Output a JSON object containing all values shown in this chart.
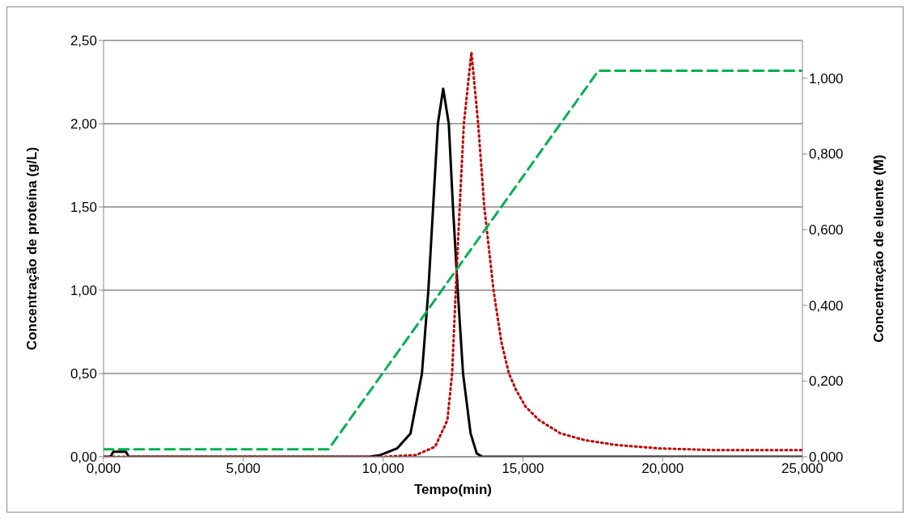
{
  "chart_data": {
    "type": "line",
    "xlabel": "Tempo(min)",
    "ylabel": "Concentração de proteína (g/L)",
    "y2label": "Concentração de eluente (M)",
    "xlim": [
      0,
      25
    ],
    "xticks": [
      {
        "value": 0,
        "label": "0,000"
      },
      {
        "value": 5,
        "label": "5,000"
      },
      {
        "value": 10,
        "label": "10,000"
      },
      {
        "value": 15,
        "label": "15,000"
      },
      {
        "value": 20,
        "label": "20,000"
      },
      {
        "value": 25,
        "label": "25,000"
      }
    ],
    "ylim": [
      0,
      2.5
    ],
    "yticks": [
      {
        "value": 0,
        "label": "0,00"
      },
      {
        "value": 0.5,
        "label": "0,50"
      },
      {
        "value": 1,
        "label": "1,00"
      },
      {
        "value": 1.5,
        "label": "1,50"
      },
      {
        "value": 2,
        "label": "2,00"
      },
      {
        "value": 2.5,
        "label": "2,50"
      }
    ],
    "y2lim": [
      0,
      1.1
    ],
    "y2ticks": [
      {
        "value": 0,
        "label": "0,000"
      },
      {
        "value": 0.2,
        "label": "0,200"
      },
      {
        "value": 0.4,
        "label": "0,400"
      },
      {
        "value": 0.6,
        "label": "0,600"
      },
      {
        "value": 0.8,
        "label": "0,800"
      },
      {
        "value": 1,
        "label": "1,000"
      }
    ],
    "grid": "y",
    "legend": false,
    "marker": "none",
    "series": [
      {
        "color": "#000000",
        "line_style": "solid",
        "x": [
          0,
          0.25,
          0.35,
          0.8,
          0.9,
          9.5,
          9.9,
          10.5,
          10.98,
          11.39,
          11.62,
          11.79,
          11.96,
          12.15,
          12.35,
          12.5,
          12.67,
          12.86,
          13.13,
          13.35,
          13.55,
          25
        ],
        "values": [
          0,
          0,
          0.03,
          0.03,
          0,
          0,
          0.01,
          0.05,
          0.14,
          0.5,
          1.0,
          1.5,
          2.0,
          2.21,
          2.0,
          1.5,
          1.0,
          0.5,
          0.14,
          0.02,
          0,
          0
        ]
      },
      {
        "color": "#c00000",
        "line_style": "dotted",
        "x": [
          0,
          10,
          11.17,
          11.86,
          12.3,
          12.47,
          12.6,
          12.74,
          12.89,
          13.16,
          13.4,
          13.62,
          13.95,
          14.23,
          14.5,
          14.76,
          15.1,
          15.58,
          16.35,
          17.21,
          18.37,
          19.9,
          21.83,
          25
        ],
        "values": [
          0,
          0,
          0.01,
          0.06,
          0.22,
          0.5,
          1.0,
          1.5,
          2.0,
          2.43,
          2.0,
          1.5,
          1.0,
          0.69,
          0.5,
          0.4,
          0.3,
          0.22,
          0.14,
          0.1,
          0.07,
          0.05,
          0.04,
          0.04
        ]
      },
      {
        "color": "#00b050",
        "line_style": "dashed",
        "axis": "y2",
        "x": [
          0,
          8.05,
          17.7,
          25
        ],
        "values": [
          0.02,
          0.02,
          1.02,
          1.02
        ]
      }
    ]
  }
}
